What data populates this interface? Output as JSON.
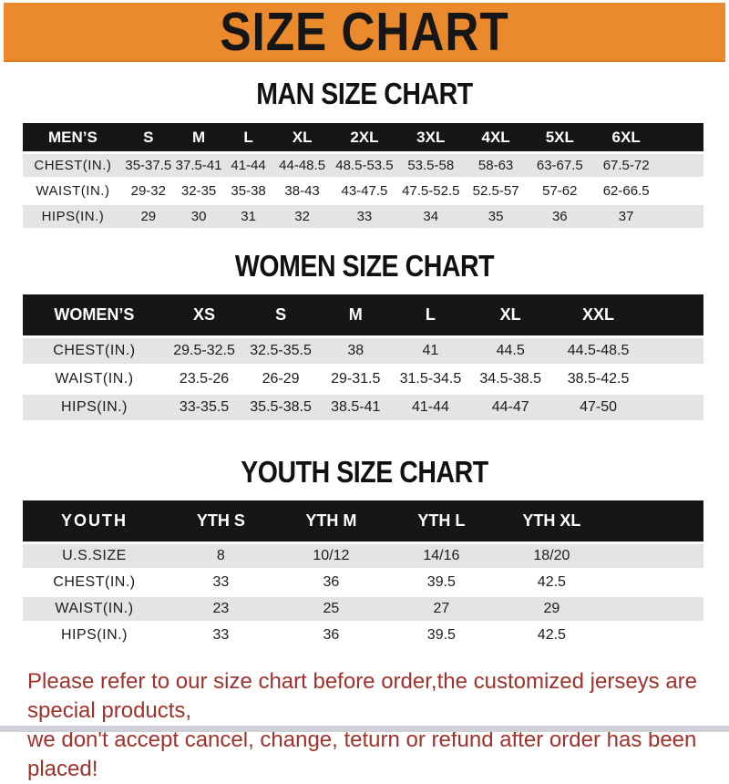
{
  "banner": {
    "title": "SIZE CHART",
    "bg_color": "#EA8A2D",
    "text_color": "#161616"
  },
  "sections": [
    {
      "title": "MAN SIZE CHART",
      "table": {
        "header_label": "MEN’S",
        "columns": [
          "S",
          "M",
          "L",
          "XL",
          "2XL",
          "3XL",
          "4XL",
          "5XL",
          "6XL"
        ],
        "rows": [
          {
            "label": "CHEST(IN.)",
            "values": [
              "35-37.5",
              "37.5-41",
              "41-44",
              "44-48.5",
              "48.5-53.5",
              "53.5-58",
              "58-63",
              "63-67.5",
              "67.5-72"
            ]
          },
          {
            "label": "WAIST(IN.)",
            "values": [
              "29-32",
              "32-35",
              "35-38",
              "38-43",
              "43-47.5",
              "47.5-52.5",
              "52.5-57",
              "57-62",
              "62-66.5"
            ]
          },
          {
            "label": "HIPS(IN.)",
            "values": [
              "29",
              "30",
              "31",
              "32",
              "33",
              "34",
              "35",
              "36",
              "37"
            ]
          }
        ]
      }
    },
    {
      "title": "WOMEN SIZE CHART",
      "table": {
        "header_label": "WOMEN’S",
        "columns": [
          "XS",
          "S",
          "M",
          "L",
          "XL",
          "XXL"
        ],
        "rows": [
          {
            "label": "CHEST(IN.)",
            "values": [
              "29.5-32.5",
              "32.5-35.5",
              "38",
              "41",
              "44.5",
              "44.5-48.5"
            ]
          },
          {
            "label": "WAIST(IN.)",
            "values": [
              "23.5-26",
              "26-29",
              "29-31.5",
              "31.5-34.5",
              "34.5-38.5",
              "38.5-42.5"
            ]
          },
          {
            "label": "HIPS(IN.)",
            "values": [
              "33-35.5",
              "35.5-38.5",
              "38.5-41",
              "41-44",
              "44-47",
              "47-50"
            ]
          }
        ]
      }
    },
    {
      "title": "YOUTH SIZE CHART",
      "table": {
        "header_label": "YOUTH",
        "columns": [
          "YTH S",
          "YTH M",
          "YTH L",
          "YTH XL"
        ],
        "rows": [
          {
            "label": "U.S.SIZE",
            "values": [
              "8",
              "10/12",
              "14/16",
              "18/20"
            ]
          },
          {
            "label": "CHEST(IN.)",
            "values": [
              "33",
              "36",
              "39.5",
              "42.5"
            ]
          },
          {
            "label": "WAIST(IN.)",
            "values": [
              "23",
              "25",
              "27",
              "29"
            ]
          },
          {
            "label": "HIPS(IN.)",
            "values": [
              "33",
              "36",
              "39.5",
              "42.5"
            ]
          }
        ]
      }
    }
  ],
  "footer": {
    "line1": "Please refer to our size chart before order,the customized jerseys are special products,",
    "line2": "we don't accept cancel, change, teturn or refund after order has been placed!",
    "text_color": "#A1312B"
  },
  "colors": {
    "header_bar": "#161616",
    "row_shaded": "#E4E4E4",
    "row_plain": "#FFFFFF"
  }
}
